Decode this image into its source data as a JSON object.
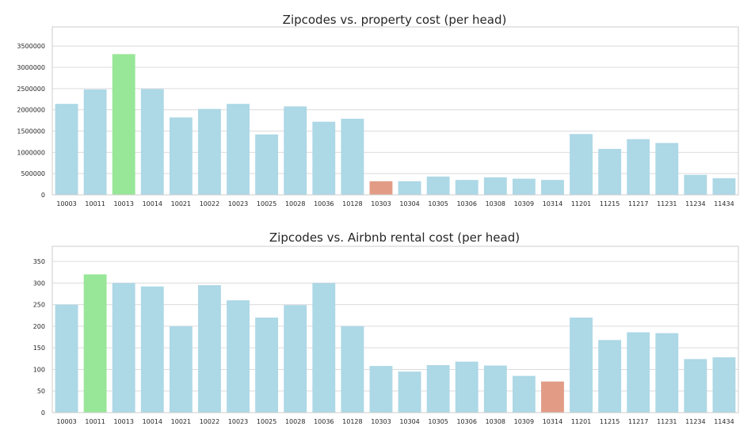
{
  "chart_data": [
    {
      "type": "bar",
      "title": "Zipcodes vs. property cost (per head)",
      "xlabel": "",
      "ylabel": "",
      "categories": [
        "10003",
        "10011",
        "10013",
        "10014",
        "10021",
        "10022",
        "10023",
        "10025",
        "10028",
        "10036",
        "10128",
        "10303",
        "10304",
        "10305",
        "10306",
        "10308",
        "10309",
        "10314",
        "11201",
        "11215",
        "11217",
        "11231",
        "11234",
        "11434"
      ],
      "values": [
        2140000,
        2480000,
        3310000,
        2490000,
        1820000,
        2020000,
        2140000,
        1420000,
        2080000,
        1720000,
        1790000,
        320000,
        320000,
        430000,
        350000,
        410000,
        380000,
        350000,
        1430000,
        1080000,
        1310000,
        1220000,
        470000,
        390000
      ],
      "yticks": [
        0,
        500000,
        1000000,
        1500000,
        2000000,
        2500000,
        3000000,
        3500000
      ],
      "ylim": [
        0,
        3950000
      ],
      "grid": true,
      "colors": {
        "default": "#add8e6",
        "highlight_max": "#98e698",
        "highlight_min": "#e29c86"
      },
      "highlight_max_index": 2,
      "highlight_min_index": 11
    },
    {
      "type": "bar",
      "title": "Zipcodes vs. Airbnb rental cost (per head)",
      "xlabel": "",
      "ylabel": "",
      "categories": [
        "10003",
        "10011",
        "10013",
        "10014",
        "10021",
        "10022",
        "10023",
        "10025",
        "10028",
        "10036",
        "10128",
        "10303",
        "10304",
        "10305",
        "10306",
        "10308",
        "10309",
        "10314",
        "11201",
        "11215",
        "11217",
        "11231",
        "11234",
        "11434"
      ],
      "values": [
        250,
        320,
        300,
        292,
        200,
        295,
        260,
        220,
        249,
        300,
        200,
        108,
        95,
        110,
        118,
        109,
        85,
        72,
        220,
        168,
        186,
        184,
        124,
        128
      ],
      "yticks": [
        0,
        50,
        100,
        150,
        200,
        250,
        300,
        350
      ],
      "ylim": [
        0,
        385
      ],
      "grid": true,
      "colors": {
        "default": "#add8e6",
        "highlight_max": "#98e698",
        "highlight_min": "#e29c86"
      },
      "highlight_max_index": 1,
      "highlight_min_index": 17
    }
  ]
}
